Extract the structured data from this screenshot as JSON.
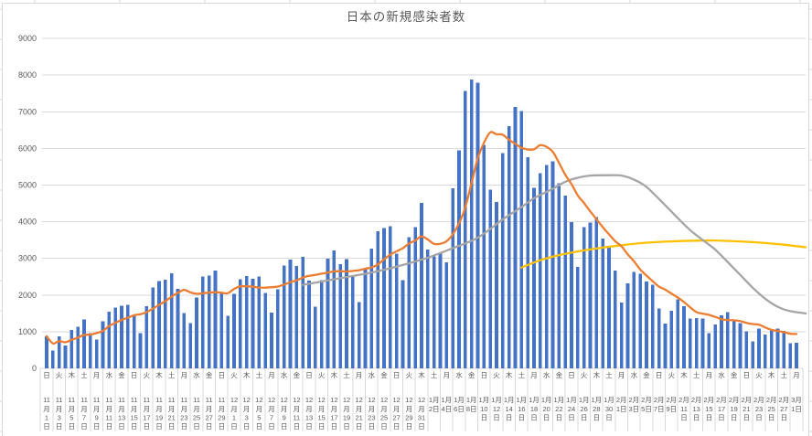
{
  "title": "日本の新規感染者数",
  "style": {
    "background": "#FFFFFF",
    "grid_color": "#D9D9D9",
    "axis_text_color": "#595959",
    "frame_color": "#D9D9D9",
    "bar_color": "#4472C4",
    "orange_line_color": "#ED7D31",
    "gray_line_color": "#A5A5A5",
    "yellow_line_color": "#FFC000"
  },
  "y_axis": {
    "min": 0,
    "max": 9000,
    "step": 1000,
    "tick_labels": [
      "0",
      "1000",
      "2000",
      "3000",
      "4000",
      "5000",
      "6000",
      "7000",
      "8000",
      "9000"
    ]
  },
  "x_axis": {
    "first_label": "日 11月1日",
    "last_label": "月 3月1日",
    "label_interval_days": 2,
    "labels": [
      {
        "w": "日",
        "m": 11,
        "d": 1
      },
      {
        "w": "火",
        "m": 11,
        "d": 3
      },
      {
        "w": "木",
        "m": 11,
        "d": 5
      },
      {
        "w": "土",
        "m": 11,
        "d": 7
      },
      {
        "w": "月",
        "m": 11,
        "d": 9
      },
      {
        "w": "水",
        "m": 11,
        "d": 11
      },
      {
        "w": "金",
        "m": 11,
        "d": 13
      },
      {
        "w": "日",
        "m": 11,
        "d": 15
      },
      {
        "w": "火",
        "m": 11,
        "d": 17
      },
      {
        "w": "木",
        "m": 11,
        "d": 19
      },
      {
        "w": "土",
        "m": 11,
        "d": 21
      },
      {
        "w": "月",
        "m": 11,
        "d": 23
      },
      {
        "w": "水",
        "m": 11,
        "d": 25
      },
      {
        "w": "金",
        "m": 11,
        "d": 27
      },
      {
        "w": "日",
        "m": 11,
        "d": 29
      },
      {
        "w": "火",
        "m": 12,
        "d": 1
      },
      {
        "w": "木",
        "m": 12,
        "d": 3
      },
      {
        "w": "土",
        "m": 12,
        "d": 5
      },
      {
        "w": "月",
        "m": 12,
        "d": 7
      },
      {
        "w": "水",
        "m": 12,
        "d": 9
      },
      {
        "w": "金",
        "m": 12,
        "d": 11
      },
      {
        "w": "日",
        "m": 12,
        "d": 13
      },
      {
        "w": "火",
        "m": 12,
        "d": 15
      },
      {
        "w": "木",
        "m": 12,
        "d": 17
      },
      {
        "w": "土",
        "m": 12,
        "d": 19
      },
      {
        "w": "月",
        "m": 12,
        "d": 21
      },
      {
        "w": "水",
        "m": 12,
        "d": 23
      },
      {
        "w": "金",
        "m": 12,
        "d": 25
      },
      {
        "w": "日",
        "m": 12,
        "d": 27
      },
      {
        "w": "火",
        "m": 12,
        "d": 29
      },
      {
        "w": "木",
        "m": 12,
        "d": 31
      },
      {
        "w": "土",
        "m": 1,
        "d": 2
      },
      {
        "w": "月",
        "m": 1,
        "d": 4
      },
      {
        "w": "水",
        "m": 1,
        "d": 6
      },
      {
        "w": "金",
        "m": 1,
        "d": 8
      },
      {
        "w": "日",
        "m": 1,
        "d": 10
      },
      {
        "w": "火",
        "m": 1,
        "d": 12
      },
      {
        "w": "木",
        "m": 1,
        "d": 14
      },
      {
        "w": "土",
        "m": 1,
        "d": 16
      },
      {
        "w": "月",
        "m": 1,
        "d": 18
      },
      {
        "w": "水",
        "m": 1,
        "d": 20
      },
      {
        "w": "金",
        "m": 1,
        "d": 22
      },
      {
        "w": "日",
        "m": 1,
        "d": 24
      },
      {
        "w": "火",
        "m": 1,
        "d": 26
      },
      {
        "w": "木",
        "m": 1,
        "d": 28
      },
      {
        "w": "土",
        "m": 1,
        "d": 30
      },
      {
        "w": "月",
        "m": 2,
        "d": 1
      },
      {
        "w": "水",
        "m": 2,
        "d": 3
      },
      {
        "w": "金",
        "m": 2,
        "d": 5
      },
      {
        "w": "日",
        "m": 2,
        "d": 7
      },
      {
        "w": "火",
        "m": 2,
        "d": 9
      },
      {
        "w": "木",
        "m": 2,
        "d": 11
      },
      {
        "w": "土",
        "m": 2,
        "d": 13
      },
      {
        "w": "月",
        "m": 2,
        "d": 15
      },
      {
        "w": "水",
        "m": 2,
        "d": 17
      },
      {
        "w": "金",
        "m": 2,
        "d": 19
      },
      {
        "w": "日",
        "m": 2,
        "d": 21
      },
      {
        "w": "火",
        "m": 2,
        "d": 23
      },
      {
        "w": "木",
        "m": 2,
        "d": 25
      },
      {
        "w": "土",
        "m": 2,
        "d": 27
      },
      {
        "w": "月",
        "m": 3,
        "d": 1
      }
    ]
  },
  "chart_data": {
    "type": "bar",
    "title": "日本の新規感染者数",
    "xlabel": "",
    "ylabel": "",
    "ylim": [
      0,
      9000
    ],
    "grid": true,
    "legend": "none",
    "x_start": "11月1日",
    "x_end": "3月1日",
    "x_unit": "day",
    "series": [
      {
        "name": "bars-blue-daily-new-cases",
        "type": "bar",
        "color": "#4472C4",
        "values": [
          877,
          487,
          867,
          620,
          1050,
          1141,
          1331,
          954,
          780,
          1284,
          1543,
          1661,
          1704,
          1737,
          1440,
          959,
          1698,
          2201,
          2386,
          2418,
          2592,
          2168,
          1515,
          1229,
          1930,
          2503,
          2527,
          2674,
          2063,
          1434,
          2030,
          2430,
          2518,
          2442,
          2508,
          2058,
          1516,
          2152,
          2810,
          2971,
          2790,
          3041,
          2388,
          1680,
          2410,
          2994,
          3211,
          2837,
          2982,
          2501,
          1806,
          2688,
          3271,
          3742,
          3832,
          3881,
          3127,
          2403,
          3581,
          3852,
          4520,
          3246,
          3053,
          3127,
          2896,
          4915,
          5953,
          7570,
          7882,
          7790,
          6096,
          4875,
          4533,
          5870,
          6607,
          7133,
          7014,
          5759,
          4925,
          5320,
          5549,
          5653,
          5045,
          4717,
          3990,
          2764,
          3853,
          3973,
          4133,
          3539,
          3344,
          2673,
          1792,
          2324,
          2631,
          2576,
          2372,
          2279,
          1631,
          1216,
          1571,
          1887,
          1693,
          1362,
          1371,
          1364,
          965,
          1194,
          1448,
          1538,
          1301,
          1234,
          1005,
          739,
          1084,
          922,
          1074,
          1083,
          1018,
          689,
          697
        ]
      },
      {
        "name": "line-orange-7day-average",
        "type": "line",
        "color": "#ED7D31",
        "derived_from": "bars-blue-daily-new-cases",
        "derivation": "trailing 7-day moving average"
      },
      {
        "name": "line-gray",
        "type": "line",
        "color": "#A5A5A5",
        "points": [
          [
            41,
            2280
          ],
          [
            45,
            2400
          ],
          [
            49,
            2520
          ],
          [
            53,
            2650
          ],
          [
            57,
            2820
          ],
          [
            61,
            3020
          ],
          [
            65,
            3280
          ],
          [
            69,
            3565
          ],
          [
            73,
            4065
          ],
          [
            76,
            4400
          ],
          [
            78,
            4640
          ],
          [
            81,
            4900
          ],
          [
            83,
            5090
          ],
          [
            85,
            5200
          ],
          [
            87,
            5260
          ],
          [
            90,
            5270
          ],
          [
            92,
            5260
          ],
          [
            94,
            5150
          ],
          [
            96,
            4950
          ],
          [
            99,
            4450
          ],
          [
            101,
            4100
          ],
          [
            103,
            3770
          ],
          [
            105,
            3500
          ],
          [
            107,
            3240
          ],
          [
            109,
            2900
          ],
          [
            111,
            2550
          ],
          [
            113,
            2200
          ],
          [
            115,
            1900
          ],
          [
            117,
            1680
          ],
          [
            119,
            1560
          ],
          [
            121.5,
            1500
          ]
        ]
      },
      {
        "name": "line-yellow",
        "type": "line",
        "color": "#FFC000",
        "points": [
          [
            76,
            2750
          ],
          [
            79,
            2950
          ],
          [
            82,
            3090
          ],
          [
            85,
            3190
          ],
          [
            88,
            3270
          ],
          [
            92,
            3360
          ],
          [
            96,
            3430
          ],
          [
            100,
            3465
          ],
          [
            104,
            3485
          ],
          [
            107,
            3490
          ],
          [
            110,
            3470
          ],
          [
            113,
            3445
          ],
          [
            116,
            3405
          ],
          [
            118,
            3375
          ],
          [
            120,
            3335
          ],
          [
            121.5,
            3305
          ]
        ]
      }
    ]
  }
}
